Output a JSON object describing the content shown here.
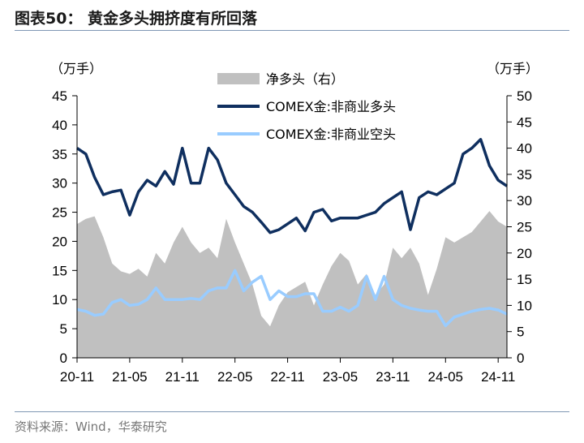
{
  "header": {
    "title": "图表50：  黄金多头拥挤度有所回落"
  },
  "footer": {
    "source": "资料来源：Wind，华泰研究"
  },
  "colors": {
    "area": "#c0c0c0",
    "long": "#0f2f5f",
    "short": "#99ccff",
    "rule": "#7f97b4"
  },
  "chart_data": {
    "type": "line",
    "left_unit_label": "（万手）",
    "right_unit_label": "（万手）",
    "left_axis": {
      "min": 0,
      "max": 45,
      "ticks": [
        0,
        5,
        10,
        15,
        20,
        25,
        30,
        35,
        40,
        45
      ]
    },
    "right_axis": {
      "min": 0,
      "max": 50,
      "ticks": [
        0,
        5,
        10,
        15,
        20,
        25,
        30,
        35,
        40,
        45,
        50
      ]
    },
    "x_ticks": [
      "20-11",
      "21-05",
      "21-11",
      "22-05",
      "22-11",
      "23-05",
      "23-11",
      "24-05",
      "24-11"
    ],
    "x": [
      "20-11",
      "20-12",
      "21-01",
      "21-02",
      "21-03",
      "21-04",
      "21-05",
      "21-06",
      "21-07",
      "21-08",
      "21-09",
      "21-10",
      "21-11",
      "21-12",
      "22-01",
      "22-02",
      "22-03",
      "22-04",
      "22-05",
      "22-06",
      "22-07",
      "22-08",
      "22-09",
      "22-10",
      "22-11",
      "22-12",
      "23-01",
      "23-02",
      "23-03",
      "23-04",
      "23-05",
      "23-06",
      "23-07",
      "23-08",
      "23-09",
      "23-10",
      "23-11",
      "23-12",
      "24-01",
      "24-02",
      "24-03",
      "24-04",
      "24-05",
      "24-06",
      "24-07",
      "24-08",
      "24-09",
      "24-10",
      "24-11",
      "24-12"
    ],
    "legend": {
      "position": "top-center"
    },
    "series": [
      {
        "name": "净多头（右）",
        "kind": "area",
        "axis": "right",
        "values": [
          25.5,
          26.5,
          27,
          23,
          18,
          16.5,
          16,
          17,
          15.5,
          20,
          18,
          22,
          25,
          22,
          20,
          21,
          19,
          26.5,
          22,
          18,
          14,
          8,
          6,
          10,
          12.5,
          13.5,
          14.5,
          10,
          14,
          17.5,
          20,
          18.5,
          14,
          16,
          12,
          14,
          21,
          19,
          21,
          18,
          12,
          17,
          23,
          22,
          23,
          24,
          26,
          28,
          26,
          25
        ]
      },
      {
        "name": "COMEX金:非商业多头",
        "kind": "line",
        "axis": "left",
        "values": [
          36,
          35,
          31,
          28,
          28.5,
          28.8,
          24.5,
          28.5,
          30.5,
          29.5,
          32,
          29.8,
          36,
          30,
          30,
          36,
          34,
          30,
          28,
          26,
          25,
          23.3,
          21.5,
          22,
          23,
          24,
          21.8,
          25,
          25.5,
          23.5,
          24,
          24,
          24,
          24.5,
          25,
          26.5,
          27.5,
          28.5,
          22,
          27.5,
          28.5,
          28,
          29,
          30,
          35,
          36,
          37.5,
          33,
          30.5,
          29.5
        ]
      },
      {
        "name": "COMEX金:非商业空头",
        "kind": "line",
        "axis": "left",
        "values": [
          8.3,
          8,
          7.3,
          7.5,
          9.5,
          10,
          9,
          9.2,
          10,
          12,
          10,
          10,
          10,
          10.2,
          10,
          11.5,
          12,
          12,
          15,
          11.5,
          13,
          14,
          10,
          11.5,
          10.5,
          10.5,
          11,
          11,
          8,
          8,
          8.7,
          8,
          9,
          14,
          10,
          14,
          10,
          9,
          8.5,
          8.2,
          8,
          8,
          5.5,
          7,
          7.5,
          8,
          8.3,
          8.5,
          8.2,
          7.5
        ]
      }
    ]
  }
}
